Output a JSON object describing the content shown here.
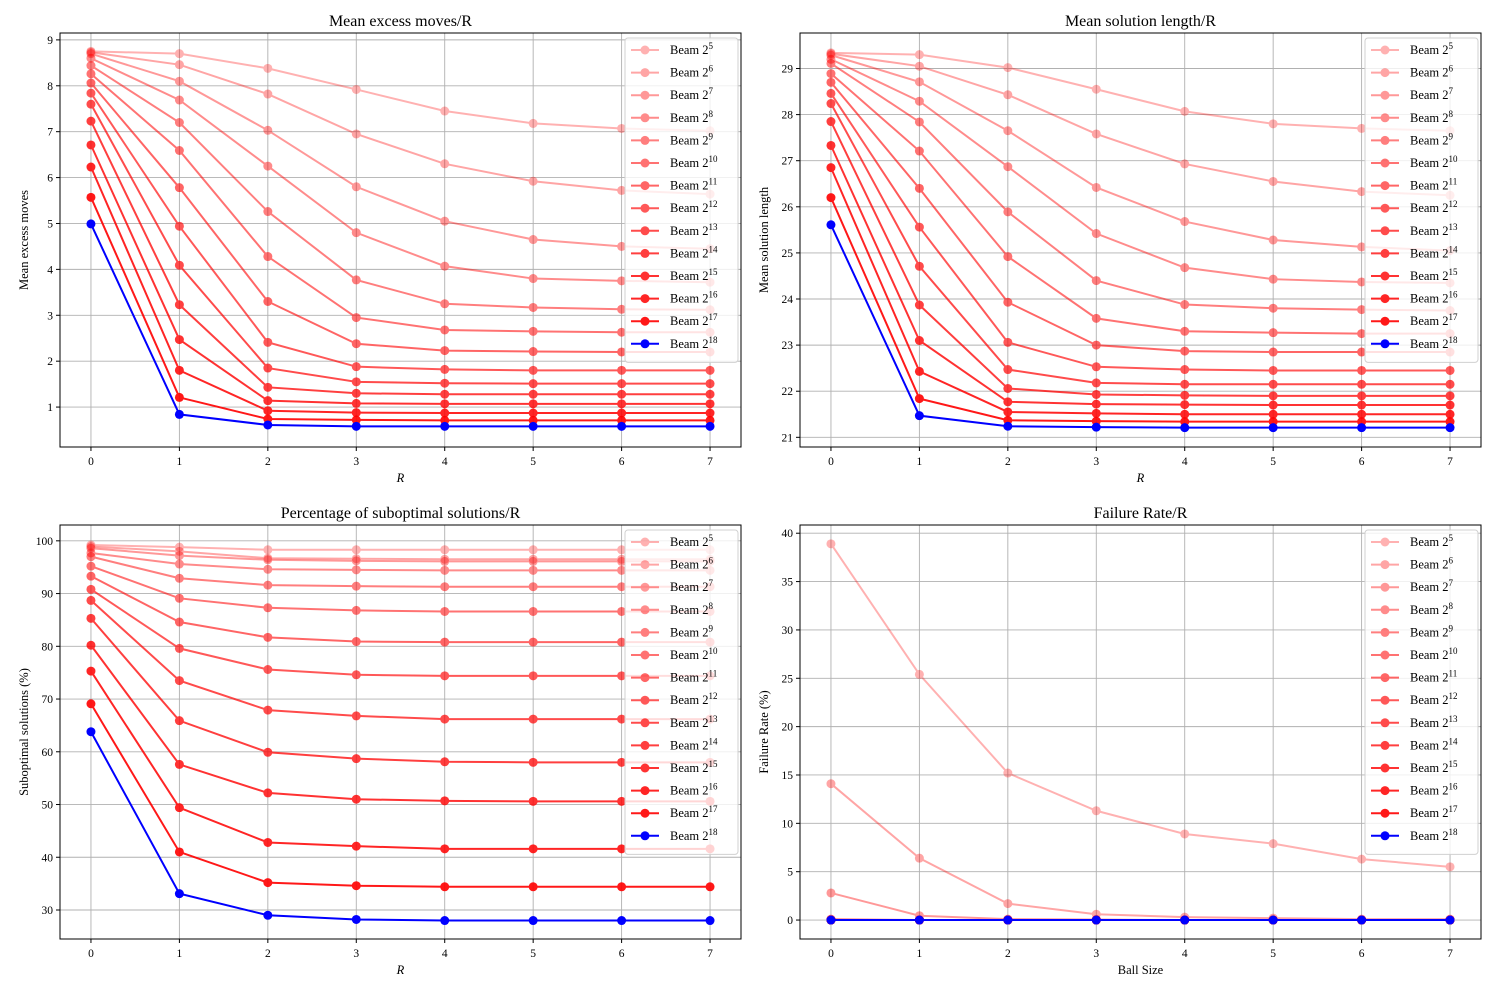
{
  "chart_data": [
    {
      "type": "line",
      "title": "Mean excess moves/R",
      "xlabel": "R",
      "ylabel": "Mean excess moves",
      "x": [
        0,
        1,
        2,
        3,
        4,
        5,
        6,
        7
      ],
      "xticks": [
        0,
        1,
        2,
        3,
        4,
        5,
        6,
        7
      ],
      "yticks": [
        1,
        2,
        3,
        4,
        5,
        6,
        7,
        8,
        9
      ],
      "xlim": [
        -0.35,
        7.35
      ],
      "ylim": [
        0.13,
        9.15
      ],
      "grid": true,
      "legend": "top-right",
      "series": [
        {
          "label_base": "Beam 2",
          "label_exp": "5",
          "values": [
            8.75,
            8.7,
            8.38,
            7.92,
            7.45,
            7.18,
            7.07,
            7.02
          ]
        },
        {
          "label_base": "Beam 2",
          "label_exp": "6",
          "values": [
            8.73,
            8.46,
            7.82,
            6.95,
            6.3,
            5.92,
            5.72,
            5.64
          ]
        },
        {
          "label_base": "Beam 2",
          "label_exp": "7",
          "values": [
            8.7,
            8.1,
            7.03,
            5.8,
            5.05,
            4.65,
            4.5,
            4.45
          ]
        },
        {
          "label_base": "Beam 2",
          "label_exp": "8",
          "values": [
            8.6,
            7.69,
            6.25,
            4.8,
            4.07,
            3.8,
            3.75,
            3.72
          ]
        },
        {
          "label_base": "Beam 2",
          "label_exp": "9",
          "values": [
            8.44,
            7.2,
            5.26,
            3.77,
            3.25,
            3.17,
            3.13,
            3.12
          ]
        },
        {
          "label_base": "Beam 2",
          "label_exp": "10",
          "values": [
            8.26,
            6.59,
            4.28,
            2.95,
            2.68,
            2.65,
            2.63,
            2.63
          ]
        },
        {
          "label_base": "Beam 2",
          "label_exp": "11",
          "values": [
            8.06,
            5.78,
            3.3,
            2.38,
            2.23,
            2.21,
            2.2,
            2.2
          ]
        },
        {
          "label_base": "Beam 2",
          "label_exp": "12",
          "values": [
            7.84,
            4.94,
            2.41,
            1.88,
            1.82,
            1.8,
            1.8,
            1.8
          ]
        },
        {
          "label_base": "Beam 2",
          "label_exp": "13",
          "values": [
            7.6,
            4.09,
            1.85,
            1.55,
            1.52,
            1.51,
            1.51,
            1.51
          ]
        },
        {
          "label_base": "Beam 2",
          "label_exp": "14",
          "values": [
            7.23,
            3.23,
            1.43,
            1.3,
            1.28,
            1.28,
            1.28,
            1.28
          ]
        },
        {
          "label_base": "Beam 2",
          "label_exp": "15",
          "values": [
            6.71,
            2.47,
            1.14,
            1.08,
            1.07,
            1.07,
            1.07,
            1.07
          ]
        },
        {
          "label_base": "Beam 2",
          "label_exp": "16",
          "values": [
            6.23,
            1.8,
            0.92,
            0.88,
            0.87,
            0.87,
            0.87,
            0.87
          ]
        },
        {
          "label_base": "Beam 2",
          "label_exp": "17",
          "values": [
            5.57,
            1.21,
            0.74,
            0.72,
            0.71,
            0.71,
            0.71,
            0.71
          ]
        },
        {
          "label_base": "Beam 2",
          "label_exp": "18",
          "values": [
            4.99,
            0.84,
            0.61,
            0.58,
            0.58,
            0.58,
            0.58,
            0.58
          ]
        }
      ]
    },
    {
      "type": "line",
      "title": "Mean solution length/R",
      "xlabel": "R",
      "ylabel": "Mean solution length",
      "x": [
        0,
        1,
        2,
        3,
        4,
        5,
        6,
        7
      ],
      "xticks": [
        0,
        1,
        2,
        3,
        4,
        5,
        6,
        7
      ],
      "yticks": [
        21,
        22,
        23,
        24,
        25,
        26,
        27,
        28,
        29
      ],
      "xlim": [
        -0.35,
        7.35
      ],
      "ylim": [
        20.79,
        29.77
      ],
      "grid": true,
      "legend": "top-right",
      "series": [
        {
          "label_base": "Beam 2",
          "label_exp": "5",
          "values": [
            29.34,
            29.3,
            29.02,
            28.55,
            28.07,
            27.8,
            27.7,
            27.65
          ]
        },
        {
          "label_base": "Beam 2",
          "label_exp": "6",
          "values": [
            29.32,
            29.05,
            28.43,
            27.58,
            26.93,
            26.55,
            26.33,
            26.25
          ]
        },
        {
          "label_base": "Beam 2",
          "label_exp": "7",
          "values": [
            29.29,
            28.71,
            27.65,
            26.42,
            25.68,
            25.28,
            25.13,
            25.05
          ]
        },
        {
          "label_base": "Beam 2",
          "label_exp": "8",
          "values": [
            29.2,
            28.29,
            26.87,
            25.42,
            24.68,
            24.43,
            24.37,
            24.35
          ]
        },
        {
          "label_base": "Beam 2",
          "label_exp": "9",
          "values": [
            29.11,
            27.84,
            25.89,
            24.4,
            23.88,
            23.8,
            23.77,
            23.75
          ]
        },
        {
          "label_base": "Beam 2",
          "label_exp": "10",
          "values": [
            28.89,
            27.21,
            24.92,
            23.58,
            23.3,
            23.27,
            23.25,
            23.25
          ]
        },
        {
          "label_base": "Beam 2",
          "label_exp": "11",
          "values": [
            28.7,
            26.4,
            23.93,
            23.0,
            22.87,
            22.85,
            22.85,
            22.85
          ]
        },
        {
          "label_base": "Beam 2",
          "label_exp": "12",
          "values": [
            28.46,
            25.56,
            23.06,
            22.53,
            22.47,
            22.45,
            22.45,
            22.45
          ]
        },
        {
          "label_base": "Beam 2",
          "label_exp": "13",
          "values": [
            28.24,
            24.71,
            22.47,
            22.18,
            22.15,
            22.15,
            22.15,
            22.15
          ]
        },
        {
          "label_base": "Beam 2",
          "label_exp": "14",
          "values": [
            27.85,
            23.87,
            22.06,
            21.93,
            21.91,
            21.9,
            21.9,
            21.9
          ]
        },
        {
          "label_base": "Beam 2",
          "label_exp": "15",
          "values": [
            27.33,
            23.1,
            21.77,
            21.72,
            21.71,
            21.7,
            21.7,
            21.7
          ]
        },
        {
          "label_base": "Beam 2",
          "label_exp": "16",
          "values": [
            26.85,
            22.43,
            21.55,
            21.52,
            21.5,
            21.5,
            21.5,
            21.5
          ]
        },
        {
          "label_base": "Beam 2",
          "label_exp": "17",
          "values": [
            26.2,
            21.84,
            21.37,
            21.35,
            21.34,
            21.34,
            21.34,
            21.34
          ]
        },
        {
          "label_base": "Beam 2",
          "label_exp": "18",
          "values": [
            25.61,
            21.47,
            21.24,
            21.22,
            21.21,
            21.21,
            21.21,
            21.21
          ]
        }
      ]
    },
    {
      "type": "line",
      "title": "Percentage of suboptimal solutions/R",
      "xlabel": "R",
      "ylabel": "Suboptimal solutions (%)",
      "x": [
        0,
        1,
        2,
        3,
        4,
        5,
        6,
        7
      ],
      "xticks": [
        0,
        1,
        2,
        3,
        4,
        5,
        6,
        7
      ],
      "yticks": [
        30,
        40,
        50,
        60,
        70,
        80,
        90,
        100
      ],
      "xlim": [
        -0.35,
        7.35
      ],
      "ylim": [
        24.5,
        103.0
      ],
      "grid": true,
      "legend": "top-right",
      "series": [
        {
          "label_base": "Beam 2",
          "label_exp": "5",
          "values": [
            99.2,
            98.8,
            98.3,
            98.3,
            98.3,
            98.3,
            98.3,
            98.3
          ]
        },
        {
          "label_base": "Beam 2",
          "label_exp": "6",
          "values": [
            98.9,
            98.0,
            96.7,
            96.6,
            96.5,
            96.5,
            96.5,
            96.5
          ]
        },
        {
          "label_base": "Beam 2",
          "label_exp": "7",
          "values": [
            98.6,
            97.2,
            96.4,
            96.2,
            96.1,
            96.1,
            96.1,
            96.1
          ]
        },
        {
          "label_base": "Beam 2",
          "label_exp": "8",
          "values": [
            97.7,
            95.6,
            94.6,
            94.5,
            94.4,
            94.4,
            94.4,
            94.4
          ]
        },
        {
          "label_base": "Beam 2",
          "label_exp": "9",
          "values": [
            97.0,
            92.9,
            91.6,
            91.4,
            91.3,
            91.3,
            91.3,
            91.3
          ]
        },
        {
          "label_base": "Beam 2",
          "label_exp": "10",
          "values": [
            95.2,
            89.1,
            87.3,
            86.8,
            86.6,
            86.6,
            86.6,
            86.6
          ]
        },
        {
          "label_base": "Beam 2",
          "label_exp": "11",
          "values": [
            93.3,
            84.6,
            81.7,
            80.9,
            80.8,
            80.8,
            80.8,
            80.8
          ]
        },
        {
          "label_base": "Beam 2",
          "label_exp": "12",
          "values": [
            90.8,
            79.6,
            75.6,
            74.6,
            74.4,
            74.4,
            74.4,
            74.4
          ]
        },
        {
          "label_base": "Beam 2",
          "label_exp": "13",
          "values": [
            88.7,
            73.5,
            67.9,
            66.8,
            66.2,
            66.2,
            66.2,
            66.2
          ]
        },
        {
          "label_base": "Beam 2",
          "label_exp": "14",
          "values": [
            85.3,
            65.9,
            59.9,
            58.7,
            58.1,
            58.0,
            58.0,
            58.0
          ]
        },
        {
          "label_base": "Beam 2",
          "label_exp": "15",
          "values": [
            80.2,
            57.6,
            52.2,
            51.0,
            50.7,
            50.6,
            50.6,
            50.6
          ]
        },
        {
          "label_base": "Beam 2",
          "label_exp": "16",
          "values": [
            75.3,
            49.4,
            42.8,
            42.1,
            41.6,
            41.6,
            41.6,
            41.6
          ]
        },
        {
          "label_base": "Beam 2",
          "label_exp": "17",
          "values": [
            69.1,
            41.0,
            35.2,
            34.6,
            34.4,
            34.4,
            34.4,
            34.4
          ]
        },
        {
          "label_base": "Beam 2",
          "label_exp": "18",
          "values": [
            63.8,
            33.1,
            29.0,
            28.2,
            28.0,
            28.0,
            28.0,
            28.0
          ]
        }
      ]
    },
    {
      "type": "line",
      "title": "Failure Rate/R",
      "xlabel": "Ball Size",
      "ylabel": "Failure Rate (%)",
      "x": [
        0,
        1,
        2,
        3,
        4,
        5,
        6,
        7
      ],
      "xticks": [
        0,
        1,
        2,
        3,
        4,
        5,
        6,
        7
      ],
      "yticks": [
        0,
        5,
        10,
        15,
        20,
        25,
        30,
        35,
        40
      ],
      "xlim": [
        -0.35,
        7.35
      ],
      "ylim": [
        -1.96,
        40.85
      ],
      "grid": true,
      "legend": "top-right",
      "series": [
        {
          "label_base": "Beam 2",
          "label_exp": "5",
          "values": [
            38.9,
            25.4,
            15.2,
            11.3,
            8.9,
            7.9,
            6.3,
            5.5
          ]
        },
        {
          "label_base": "Beam 2",
          "label_exp": "6",
          "values": [
            14.1,
            6.4,
            1.7,
            0.6,
            0.3,
            0.2,
            0.1,
            0.1
          ]
        },
        {
          "label_base": "Beam 2",
          "label_exp": "7",
          "values": [
            2.8,
            0.45,
            0.1,
            0.05,
            0,
            0,
            0,
            0
          ]
        },
        {
          "label_base": "Beam 2",
          "label_exp": "8",
          "values": [
            0.1,
            0,
            0,
            0,
            0,
            0,
            0,
            0
          ]
        },
        {
          "label_base": "Beam 2",
          "label_exp": "9",
          "values": [
            0,
            0,
            0,
            0,
            0,
            0,
            0,
            0
          ]
        },
        {
          "label_base": "Beam 2",
          "label_exp": "10",
          "values": [
            0,
            0,
            0,
            0,
            0,
            0,
            0,
            0
          ]
        },
        {
          "label_base": "Beam 2",
          "label_exp": "11",
          "values": [
            0,
            0,
            0,
            0,
            0,
            0,
            0,
            0
          ]
        },
        {
          "label_base": "Beam 2",
          "label_exp": "12",
          "values": [
            0,
            0,
            0,
            0,
            0,
            0,
            0,
            0
          ]
        },
        {
          "label_base": "Beam 2",
          "label_exp": "13",
          "values": [
            0,
            0,
            0,
            0,
            0,
            0,
            0,
            0
          ]
        },
        {
          "label_base": "Beam 2",
          "label_exp": "14",
          "values": [
            0,
            0,
            0,
            0,
            0,
            0,
            0,
            0
          ]
        },
        {
          "label_base": "Beam 2",
          "label_exp": "15",
          "values": [
            0,
            0,
            0,
            0,
            0,
            0,
            0,
            0
          ]
        },
        {
          "label_base": "Beam 2",
          "label_exp": "16",
          "values": [
            0,
            0,
            0,
            0,
            0,
            0,
            0,
            0
          ]
        },
        {
          "label_base": "Beam 2",
          "label_exp": "17",
          "values": [
            0,
            0,
            0,
            0,
            0,
            0,
            0,
            0
          ]
        },
        {
          "label_base": "Beam 2",
          "label_exp": "18",
          "values": [
            0,
            0,
            0,
            0,
            0,
            0,
            0,
            0
          ]
        }
      ]
    }
  ],
  "colors": {
    "beam_red": "#ff0000",
    "beam_final": "#0000ff",
    "grid": "#b0b0b0"
  }
}
